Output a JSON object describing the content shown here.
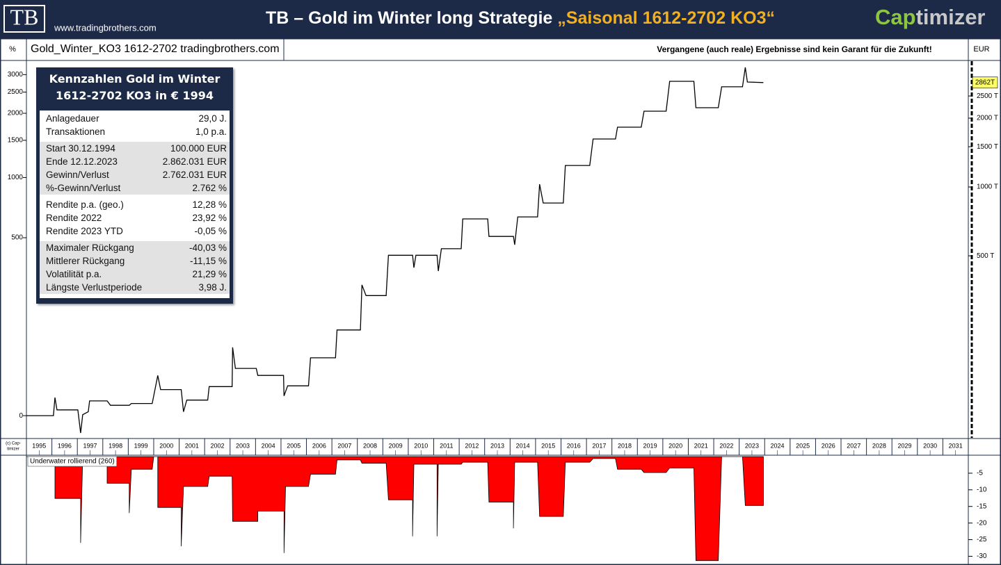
{
  "header": {
    "logo": "TB",
    "url": "www.tradingbrothers.com",
    "title": "TB – Gold im Winter long Strategie",
    "title_highlight": "„Saisonal 1612-2702 KO3“",
    "brand_part1": "Cap",
    "brand_part2": "timizer"
  },
  "copyright": [
    "(c) Cap-",
    "timizer"
  ],
  "table": {
    "title_lines": [
      "Kennzahlen Gold im Winter",
      "1612-2702 KO3 in € 1994"
    ],
    "groups": [
      {
        "shaded": false,
        "rows": [
          [
            "Anlagedauer",
            "29,0 J."
          ],
          [
            "Transaktionen",
            "1,0 p.a."
          ]
        ]
      },
      {
        "shaded": true,
        "rows": [
          [
            "Start  30.12.1994",
            "100.000 EUR"
          ],
          [
            "Ende  12.12.2023",
            "2.862.031 EUR"
          ],
          [
            "Gewinn/Verlust",
            "2.762.031 EUR"
          ],
          [
            "%-Gewinn/Verlust",
            "2.762 %"
          ]
        ]
      },
      {
        "shaded": false,
        "rows": [
          [
            "Rendite p.a. (geo.)",
            "12,28 %"
          ],
          [
            "Rendite 2022",
            "23,92 %"
          ],
          [
            "Rendite 2023 YTD",
            "-0,05 %"
          ]
        ]
      },
      {
        "shaded": true,
        "rows": [
          [
            "Maximaler Rückgang",
            "-40,03 %"
          ],
          [
            "Mittlerer Rückgang",
            "-11,15 %"
          ],
          [
            "Volatilität p.a.",
            "21,29 %"
          ],
          [
            "Längste Verlustperiode",
            "3,98 J."
          ]
        ]
      }
    ]
  },
  "chart_data": [
    {
      "type": "line",
      "title": "Gold_Winter_KO3 1612-2702 tradingbrothers.com",
      "annotation": "Vergangene (auch reale) Ergebnisse sind kein Garant für die Zukunft!",
      "ylabel": "EUR",
      "y2label": "%",
      "color": "#000000",
      "log_scale": true,
      "xlim": [
        1995,
        2032
      ],
      "xticks": [
        1995,
        1996,
        1997,
        1998,
        1999,
        2000,
        2001,
        2002,
        2003,
        2004,
        2005,
        2006,
        2007,
        2008,
        2009,
        2010,
        2011,
        2012,
        2013,
        2014,
        2015,
        2016,
        2017,
        2018,
        2019,
        2020,
        2021,
        2022,
        2023,
        2024,
        2025,
        2026,
        2027,
        2028,
        2029,
        2030,
        2031
      ],
      "ylim": [
        80,
        3550
      ],
      "yticks": [
        {
          "value": 500,
          "label": "500 T"
        },
        {
          "value": 1000,
          "label": "1000 T"
        },
        {
          "value": 1500,
          "label": "1500 T"
        },
        {
          "value": 2000,
          "label": "2000 T"
        },
        {
          "value": 2500,
          "label": "2500 T"
        }
      ],
      "y2lim": [
        -20,
        3450
      ],
      "y2ticks": [
        0,
        500,
        1000,
        1500,
        2000,
        2500,
        3000
      ],
      "x": [
        1995.0,
        1996.06,
        1996.12,
        1996.2,
        1997.02,
        1997.13,
        1997.21,
        1997.43,
        1997.48,
        1998.17,
        1998.3,
        1999.04,
        1999.12,
        1999.94,
        2000.16,
        2000.27,
        2001.08,
        2001.17,
        2001.3,
        2002.12,
        2002.18,
        2003.08,
        2003.1,
        2003.21,
        2004.03,
        2004.09,
        2005.1,
        2005.12,
        2005.26,
        2006.08,
        2006.16,
        2007.14,
        2007.2,
        2008.12,
        2008.18,
        2008.34,
        2009.13,
        2009.22,
        2010.17,
        2010.22,
        2010.3,
        2011.13,
        2011.18,
        2011.3,
        2012.08,
        2012.14,
        2013.12,
        2013.17,
        2014.13,
        2014.18,
        2014.3,
        2015.08,
        2015.16,
        2015.3,
        2016.09,
        2016.17,
        2017.13,
        2017.26,
        2018.14,
        2018.22,
        2019.15,
        2019.26,
        2020.13,
        2020.27,
        2021.22,
        2021.3,
        2022.18,
        2022.31,
        2023.13,
        2023.24,
        2023.32,
        2023.95
      ],
      "values": [
        100,
        100,
        120,
        106,
        106,
        84,
        101,
        104,
        116,
        116,
        111,
        111,
        113,
        113,
        150,
        130,
        130,
        104,
        117,
        117,
        134,
        134,
        199,
        161,
        161,
        150,
        150,
        122,
        135,
        135,
        179,
        179,
        237,
        237,
        373,
        335,
        335,
        503,
        503,
        444,
        503,
        503,
        429,
        537,
        537,
        725,
        725,
        608,
        608,
        559,
        740,
        740,
        1028,
        851,
        851,
        1242,
        1242,
        1621,
        1621,
        1826,
        1826,
        2145,
        2145,
        2898,
        2898,
        2221,
        2221,
        2742,
        2742,
        3334,
        2878,
        2862
      ],
      "value_labels": [
        null,
        null,
        null,
        null,
        null,
        null,
        null,
        null,
        null,
        null,
        null,
        null,
        null,
        null,
        null,
        null,
        null,
        null,
        null,
        null,
        null,
        null,
        null,
        null,
        null,
        null,
        null,
        null,
        null,
        null,
        null,
        null,
        null,
        null,
        null,
        null,
        null,
        null,
        null,
        null,
        null,
        null,
        null,
        null,
        null,
        null,
        null,
        null,
        null,
        null,
        null,
        null,
        null,
        null,
        null,
        null,
        null,
        null,
        null,
        null,
        null,
        null,
        null,
        null,
        null,
        null,
        null,
        null,
        null,
        null,
        null,
        "2862T"
      ]
    },
    {
      "type": "area",
      "title": "Underwater rollierend (260)",
      "color": "#ff0000",
      "xlim": [
        1995,
        2032
      ],
      "ylim": [
        -32,
        0
      ],
      "yticks": [
        -5,
        -10,
        -15,
        -20,
        -25,
        -30
      ],
      "x": [
        1995.0,
        1996.12,
        1996.12,
        1997.13,
        1997.13,
        1997.21,
        1998.17,
        1998.17,
        1999.04,
        1999.04,
        1999.12,
        1999.94,
        2000.0,
        2000.16,
        2000.16,
        2001.08,
        2001.08,
        2001.17,
        2002.12,
        2002.18,
        2003.08,
        2003.1,
        2004.09,
        2004.09,
        2005.12,
        2005.12,
        2005.18,
        2006.08,
        2006.16,
        2007.14,
        2007.2,
        2008.12,
        2008.18,
        2009.13,
        2009.22,
        2010.17,
        2010.17,
        2010.22,
        2011.13,
        2011.13,
        2011.18,
        2012.08,
        2012.14,
        2013.12,
        2013.17,
        2014.13,
        2014.13,
        2014.18,
        2015.08,
        2015.16,
        2016.09,
        2016.17,
        2017.13,
        2017.26,
        2018.14,
        2018.22,
        2019.15,
        2019.26,
        2020.13,
        2020.27,
        2021.22,
        2021.3,
        2022.18,
        2022.31,
        2023.13,
        2023.24,
        2023.95
      ],
      "values": [
        0,
        0,
        -12.6,
        -12.6,
        -26,
        0,
        0,
        -8,
        -8,
        -17,
        -3.8,
        -3.8,
        0,
        0,
        -15.3,
        -15.3,
        -27,
        -9,
        -9,
        -5.9,
        -5.9,
        -19.5,
        -19.5,
        -16.4,
        -16.4,
        -29,
        -9,
        -9,
        -5.3,
        -5.3,
        -1,
        -1,
        -2,
        -2,
        -13,
        -13,
        -24,
        -2.3,
        -2.3,
        -24,
        -2.3,
        -2.3,
        -1.7,
        -1.7,
        -13.7,
        -13.7,
        -21.6,
        -1.7,
        -1.7,
        -18,
        -18,
        -1.7,
        -1.7,
        -0.6,
        -0.6,
        -3.8,
        -3.8,
        -4.8,
        -4.8,
        -3.4,
        -3.4,
        -31.3,
        -31.3,
        0,
        0,
        -14.7,
        -14.7
      ]
    }
  ]
}
